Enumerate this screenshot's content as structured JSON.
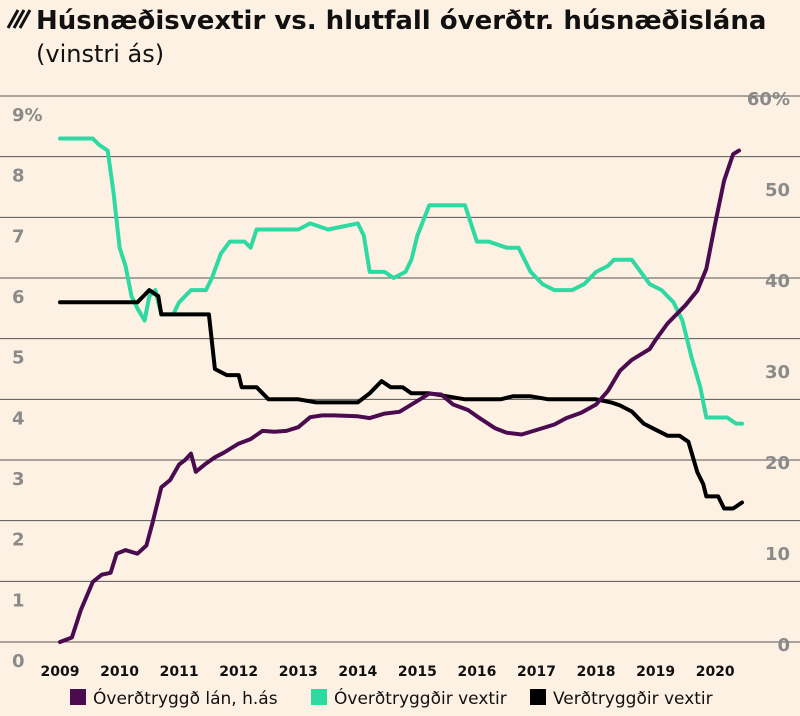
{
  "chart_data": {
    "type": "line",
    "title": "Húsnæðisvextir vs. hlutfall óverðtr. húsnæðislána",
    "subtitle": "(vinstri ás)",
    "y_left": {
      "ticks": [
        "9%",
        "8",
        "7",
        "6",
        "5",
        "4",
        "3",
        "2",
        "1",
        "0"
      ],
      "range": [
        0,
        9
      ]
    },
    "y_right": {
      "ticks": [
        "60%",
        "50",
        "40",
        "30",
        "20",
        "10",
        "0"
      ],
      "range": [
        0,
        60
      ]
    },
    "x_axis": {
      "ticks": [
        "2009",
        "2010",
        "2011",
        "2012",
        "2013",
        "2014",
        "2015",
        "2016",
        "2017",
        "2018",
        "2019",
        "2020"
      ],
      "range": [
        2009,
        2020.45
      ]
    },
    "grid": true,
    "legend_position": "bottom",
    "series": [
      {
        "name": "Óverðtryggð lán, h.ás",
        "axis": "right",
        "color": "#4b0c4f",
        "points": [
          [
            2009,
            0
          ],
          [
            2009.2,
            0.5
          ],
          [
            2009.35,
            3.5
          ],
          [
            2009.55,
            6.6
          ],
          [
            2009.7,
            7.4
          ],
          [
            2009.85,
            7.6
          ],
          [
            2009.95,
            9.7
          ],
          [
            2010.1,
            10.1
          ],
          [
            2010.3,
            9.7
          ],
          [
            2010.45,
            10.6
          ],
          [
            2010.55,
            13.0
          ],
          [
            2010.7,
            17.0
          ],
          [
            2010.85,
            17.8
          ],
          [
            2011.0,
            19.5
          ],
          [
            2011.1,
            20.0
          ],
          [
            2011.2,
            20.7
          ],
          [
            2011.28,
            18.7
          ],
          [
            2011.45,
            19.6
          ],
          [
            2011.6,
            20.3
          ],
          [
            2011.75,
            20.8
          ],
          [
            2012.0,
            21.8
          ],
          [
            2012.2,
            22.3
          ],
          [
            2012.4,
            23.2
          ],
          [
            2012.6,
            23.1
          ],
          [
            2012.8,
            23.2
          ],
          [
            2013.0,
            23.6
          ],
          [
            2013.2,
            24.7
          ],
          [
            2013.4,
            24.9
          ],
          [
            2013.6,
            24.9
          ],
          [
            2014.0,
            24.8
          ],
          [
            2014.2,
            24.6
          ],
          [
            2014.45,
            25.1
          ],
          [
            2014.7,
            25.3
          ],
          [
            2015.0,
            26.5
          ],
          [
            2015.2,
            27.3
          ],
          [
            2015.4,
            27.2
          ],
          [
            2015.6,
            26.1
          ],
          [
            2015.85,
            25.5
          ],
          [
            2016.0,
            24.8
          ],
          [
            2016.3,
            23.5
          ],
          [
            2016.5,
            23.0
          ],
          [
            2016.75,
            22.8
          ],
          [
            2017.0,
            23.3
          ],
          [
            2017.3,
            23.9
          ],
          [
            2017.5,
            24.6
          ],
          [
            2017.75,
            25.2
          ],
          [
            2018.0,
            26.1
          ],
          [
            2018.2,
            27.6
          ],
          [
            2018.4,
            29.8
          ],
          [
            2018.6,
            31.0
          ],
          [
            2018.9,
            32.2
          ],
          [
            2019.0,
            33.2
          ],
          [
            2019.2,
            35.0
          ],
          [
            2019.5,
            37.0
          ],
          [
            2019.7,
            38.6
          ],
          [
            2019.85,
            41.0
          ],
          [
            2020.0,
            46.0
          ],
          [
            2020.15,
            50.7
          ],
          [
            2020.3,
            53.6
          ],
          [
            2020.4,
            54.0
          ]
        ]
      },
      {
        "name": "Óverðtryggðir vextir",
        "axis": "left",
        "color": "#2fd9a2",
        "points": [
          [
            2009,
            8.3
          ],
          [
            2009.25,
            8.3
          ],
          [
            2009.55,
            8.3
          ],
          [
            2009.65,
            8.2
          ],
          [
            2009.8,
            8.1
          ],
          [
            2009.9,
            7.4
          ],
          [
            2010.0,
            6.5
          ],
          [
            2010.1,
            6.2
          ],
          [
            2010.2,
            5.7
          ],
          [
            2010.3,
            5.5
          ],
          [
            2010.42,
            5.3
          ],
          [
            2010.5,
            5.7
          ],
          [
            2010.6,
            5.8
          ],
          [
            2010.7,
            5.4
          ],
          [
            2010.9,
            5.4
          ],
          [
            2011.0,
            5.6
          ],
          [
            2011.2,
            5.8
          ],
          [
            2011.45,
            5.8
          ],
          [
            2011.55,
            6.0
          ],
          [
            2011.7,
            6.4
          ],
          [
            2011.85,
            6.6
          ],
          [
            2012.1,
            6.6
          ],
          [
            2012.2,
            6.5
          ],
          [
            2012.3,
            6.8
          ],
          [
            2012.6,
            6.8
          ],
          [
            2013.0,
            6.8
          ],
          [
            2013.2,
            6.9
          ],
          [
            2013.5,
            6.8
          ],
          [
            2014.0,
            6.9
          ],
          [
            2014.1,
            6.7
          ],
          [
            2014.2,
            6.1
          ],
          [
            2014.45,
            6.1
          ],
          [
            2014.6,
            6.0
          ],
          [
            2014.8,
            6.1
          ],
          [
            2014.9,
            6.3
          ],
          [
            2015.0,
            6.7
          ],
          [
            2015.2,
            7.2
          ],
          [
            2015.5,
            7.2
          ],
          [
            2015.8,
            7.2
          ],
          [
            2016.0,
            6.6
          ],
          [
            2016.2,
            6.6
          ],
          [
            2016.5,
            6.5
          ],
          [
            2016.7,
            6.5
          ],
          [
            2016.9,
            6.1
          ],
          [
            2017.1,
            5.9
          ],
          [
            2017.3,
            5.8
          ],
          [
            2017.6,
            5.8
          ],
          [
            2017.8,
            5.9
          ],
          [
            2018.0,
            6.1
          ],
          [
            2018.2,
            6.2
          ],
          [
            2018.3,
            6.3
          ],
          [
            2018.6,
            6.3
          ],
          [
            2018.75,
            6.1
          ],
          [
            2018.9,
            5.9
          ],
          [
            2019.1,
            5.8
          ],
          [
            2019.3,
            5.6
          ],
          [
            2019.45,
            5.3
          ],
          [
            2019.6,
            4.7
          ],
          [
            2019.75,
            4.2
          ],
          [
            2019.85,
            3.7
          ],
          [
            2020.0,
            3.7
          ],
          [
            2020.2,
            3.7
          ],
          [
            2020.35,
            3.6
          ],
          [
            2020.45,
            3.6
          ]
        ]
      },
      {
        "name": "Verðtryggðir vextir",
        "axis": "left",
        "color": "#000000",
        "points": [
          [
            2009,
            5.6
          ],
          [
            2009.5,
            5.6
          ],
          [
            2010.0,
            5.6
          ],
          [
            2010.3,
            5.6
          ],
          [
            2010.5,
            5.8
          ],
          [
            2010.65,
            5.7
          ],
          [
            2010.7,
            5.4
          ],
          [
            2011.0,
            5.4
          ],
          [
            2011.5,
            5.4
          ],
          [
            2011.6,
            4.5
          ],
          [
            2011.8,
            4.4
          ],
          [
            2012.0,
            4.4
          ],
          [
            2012.05,
            4.2
          ],
          [
            2012.3,
            4.2
          ],
          [
            2012.5,
            4.0
          ],
          [
            2012.8,
            4.0
          ],
          [
            2013.0,
            4.0
          ],
          [
            2013.3,
            3.95
          ],
          [
            2013.6,
            3.95
          ],
          [
            2014.0,
            3.95
          ],
          [
            2014.2,
            4.1
          ],
          [
            2014.4,
            4.3
          ],
          [
            2014.55,
            4.2
          ],
          [
            2014.75,
            4.2
          ],
          [
            2014.9,
            4.1
          ],
          [
            2015.2,
            4.1
          ],
          [
            2015.5,
            4.05
          ],
          [
            2015.8,
            4.0
          ],
          [
            2016.0,
            4.0
          ],
          [
            2016.4,
            4.0
          ],
          [
            2016.6,
            4.05
          ],
          [
            2016.9,
            4.05
          ],
          [
            2017.2,
            4.0
          ],
          [
            2017.5,
            4.0
          ],
          [
            2017.8,
            4.0
          ],
          [
            2018.0,
            4.0
          ],
          [
            2018.25,
            3.95
          ],
          [
            2018.4,
            3.9
          ],
          [
            2018.6,
            3.8
          ],
          [
            2018.8,
            3.6
          ],
          [
            2019.0,
            3.5
          ],
          [
            2019.2,
            3.4
          ],
          [
            2019.4,
            3.4
          ],
          [
            2019.55,
            3.3
          ],
          [
            2019.7,
            2.8
          ],
          [
            2019.8,
            2.6
          ],
          [
            2019.85,
            2.4
          ],
          [
            2020.05,
            2.4
          ],
          [
            2020.15,
            2.2
          ],
          [
            2020.3,
            2.2
          ],
          [
            2020.45,
            2.3
          ]
        ]
      }
    ]
  },
  "colors": {
    "background": "#fdf1e4",
    "grid": "#555555",
    "axis_tick": "#8a8a8a"
  }
}
